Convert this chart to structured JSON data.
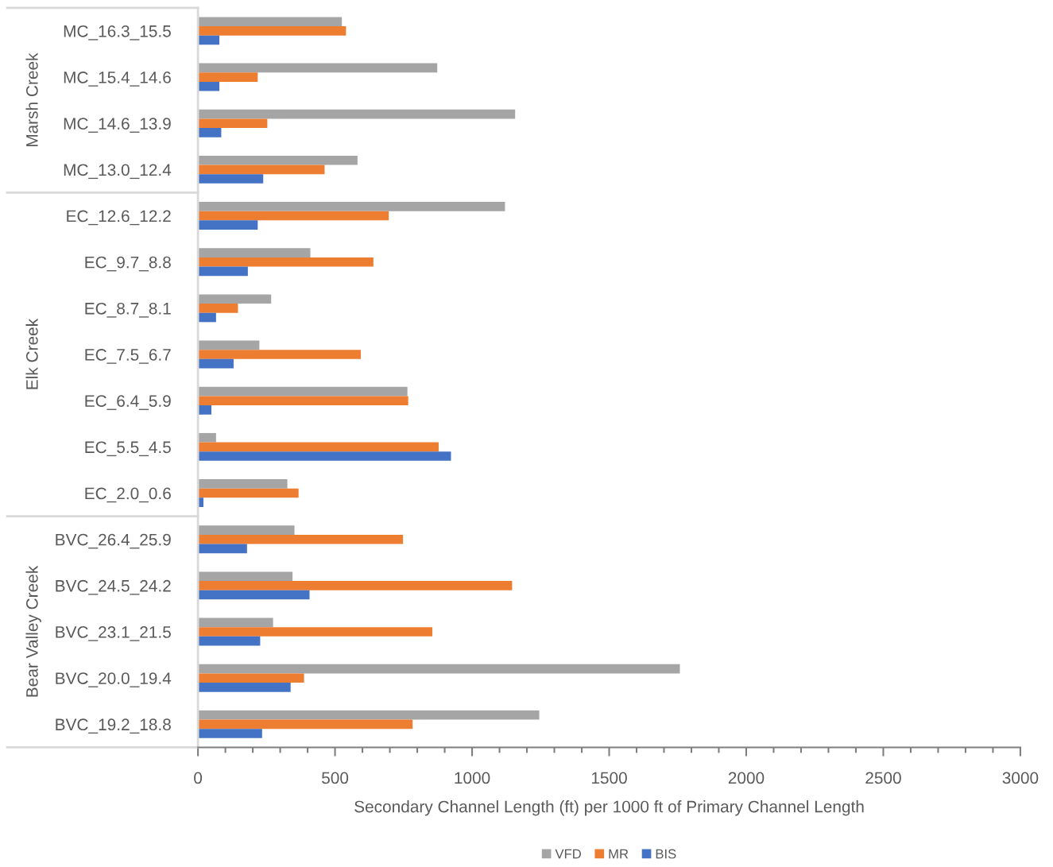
{
  "chart_data": {
    "type": "bar",
    "orientation": "horizontal",
    "categories": [
      "MC_16.3_15.5",
      "MC_15.4_14.6",
      "MC_14.6_13.9",
      "MC_13.0_12.4",
      "EC_12.6_12.2",
      "EC_9.7_8.8",
      "EC_8.7_8.1",
      "EC_7.5_6.7",
      "EC_6.4_5.9",
      "EC_5.5_4.5",
      "EC_2.0_0.6",
      "BVC_26.4_25.9",
      "BVC_24.5_24.2",
      "BVC_23.1_21.5",
      "BVC_20.0_19.4",
      "BVC_19.2_18.8"
    ],
    "series": [
      {
        "name": "VFD",
        "color": "#a5a5a5",
        "values": [
          525,
          873,
          1157,
          582,
          1120,
          410,
          267,
          224,
          764,
          66,
          326,
          352,
          345,
          274,
          1758,
          1245
        ]
      },
      {
        "name": "MR",
        "color": "#ed7d31",
        "values": [
          540,
          218,
          253,
          462,
          696,
          640,
          146,
          594,
          767,
          878,
          367,
          748,
          1146,
          855,
          387,
          783
        ]
      },
      {
        "name": "BIS",
        "color": "#4472c4",
        "values": [
          78,
          78,
          85,
          238,
          218,
          182,
          66,
          130,
          49,
          923,
          20,
          179,
          407,
          227,
          338,
          234
        ]
      }
    ],
    "xlabel": "Secondary Channel Length (ft) per 1000 ft of Primary Channel Length",
    "xlim": [
      0,
      3000
    ],
    "xticks": [
      0,
      500,
      1000,
      1500,
      2000,
      2500,
      3000
    ],
    "grid": false,
    "legend": "bottom",
    "annotations": [
      "Marsh Creek",
      "Elk Creek",
      "Bear Valley Creek"
    ]
  }
}
